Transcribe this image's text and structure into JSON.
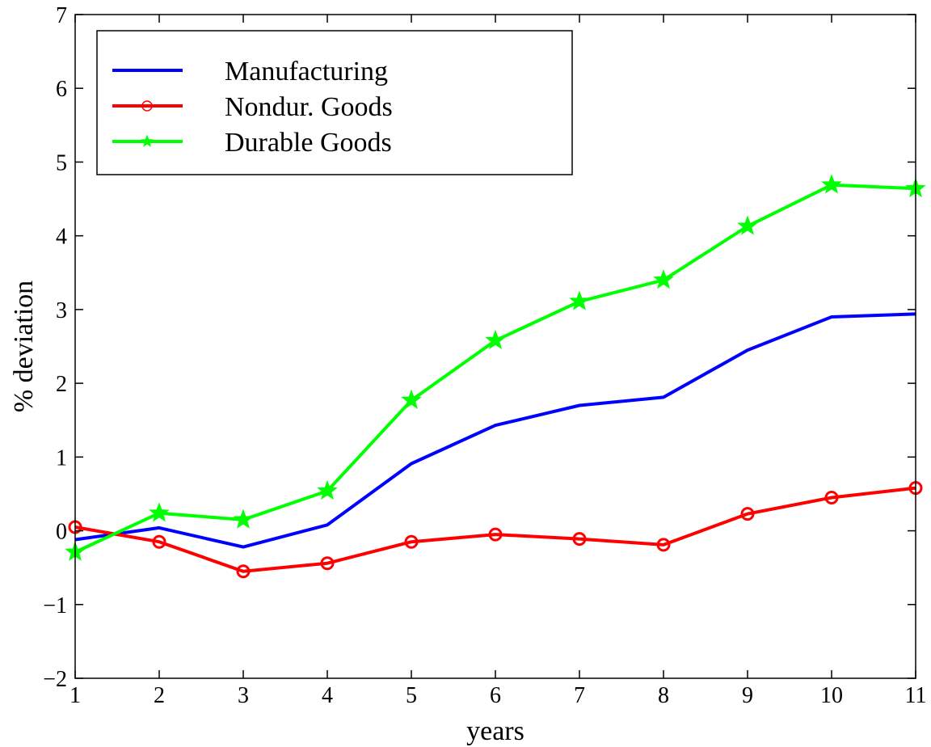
{
  "chart_data": {
    "type": "line",
    "xlabel": "years",
    "ylabel": "% deviation",
    "xlim": [
      1,
      11
    ],
    "ylim": [
      -2,
      7
    ],
    "xticks": [
      1,
      2,
      3,
      4,
      5,
      6,
      7,
      8,
      9,
      10,
      11
    ],
    "yticks": [
      -2,
      -1,
      0,
      1,
      2,
      3,
      4,
      5,
      6,
      7
    ],
    "ytick_labels": [
      "−2",
      "−1",
      "0",
      "1",
      "2",
      "3",
      "4",
      "5",
      "6",
      "7"
    ],
    "grid": false,
    "legend_position": "top-left",
    "x": [
      1,
      2,
      3,
      4,
      5,
      6,
      7,
      8,
      9,
      10,
      11
    ],
    "series": [
      {
        "name": "Manufacturing",
        "color": "#0000ff",
        "marker": "none",
        "values": [
          -0.12,
          0.04,
          -0.22,
          0.08,
          0.91,
          1.43,
          1.7,
          1.81,
          2.45,
          2.9,
          2.94
        ]
      },
      {
        "name": "Nondur. Goods",
        "color": "#ff0000",
        "marker": "circle",
        "values": [
          0.05,
          -0.15,
          -0.55,
          -0.44,
          -0.15,
          -0.05,
          -0.11,
          -0.19,
          0.23,
          0.45,
          0.58
        ]
      },
      {
        "name": "Durable Goods",
        "color": "#00ff00",
        "marker": "star",
        "values": [
          -0.29,
          0.24,
          0.15,
          0.54,
          1.77,
          2.58,
          3.11,
          3.4,
          4.13,
          4.69,
          4.64
        ]
      }
    ]
  }
}
